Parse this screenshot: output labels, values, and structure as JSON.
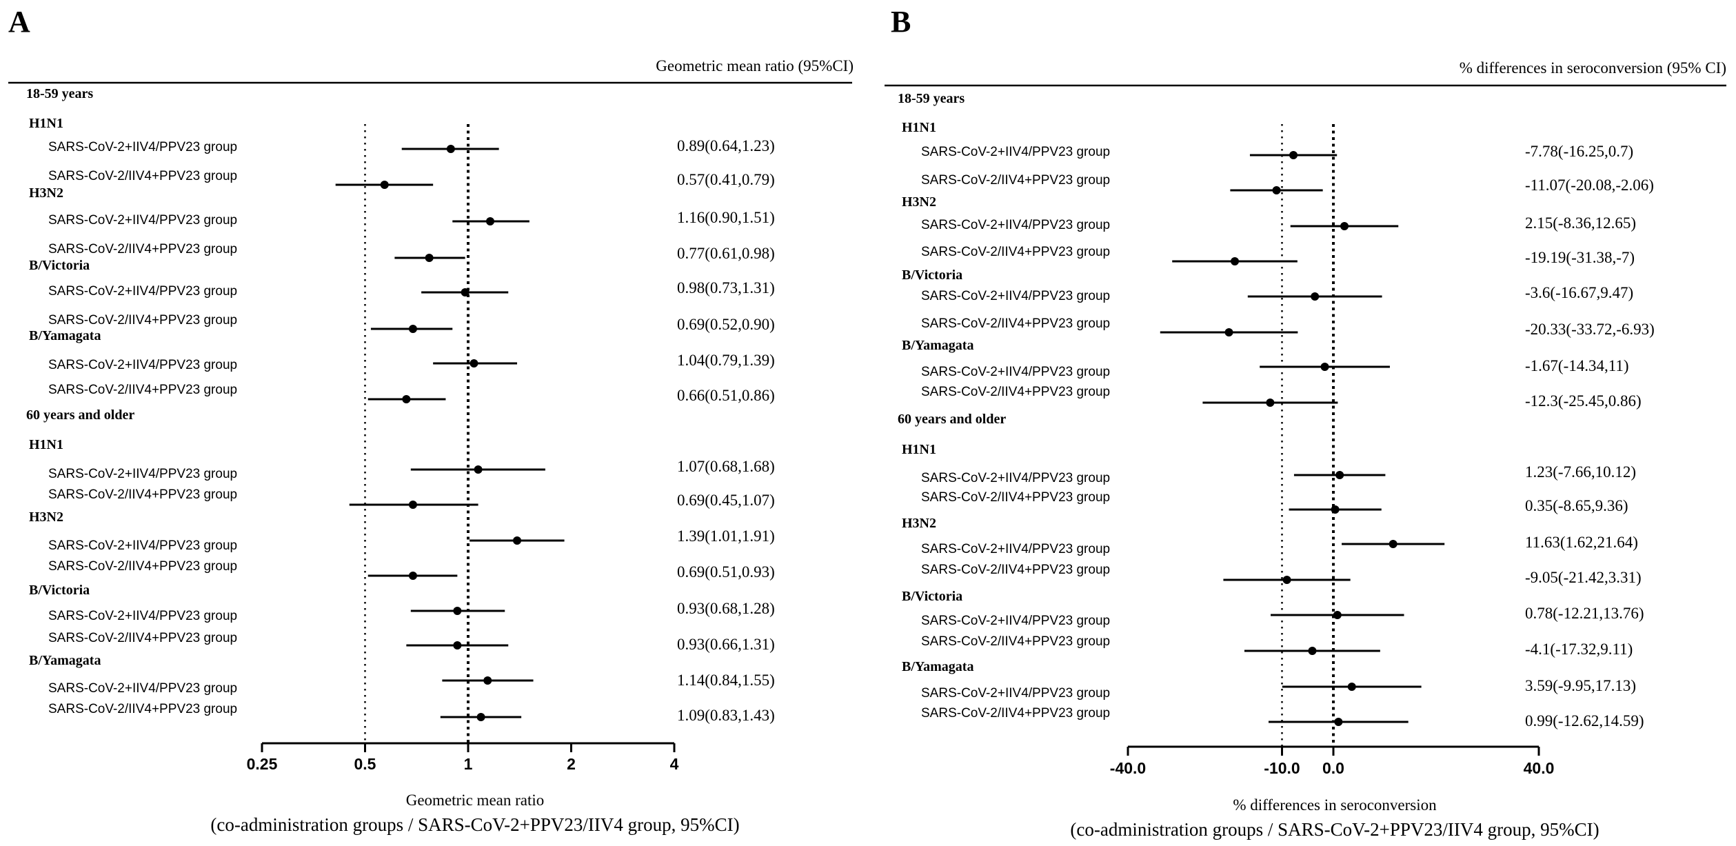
{
  "figure": {
    "colors": {
      "ink": "#000000",
      "background": "#ffffff"
    }
  },
  "chart_data": [
    {
      "type": "forest",
      "panel_label": "A",
      "header": "Geometric mean ratio (95%CI)",
      "xlabel": "Geometric mean ratio",
      "xlabel_sub": "(co-administration groups / SARS-CoV-2+PPV23/IIV4 group, 95%CI)",
      "x_scale": "log2",
      "xlim": [
        0.25,
        4
      ],
      "ticks": [
        0.25,
        0.5,
        1,
        2,
        4
      ],
      "tick_labels": [
        "0.25",
        "0.5",
        "1",
        "2",
        "4"
      ],
      "reference_lines": [
        {
          "value": 0.5,
          "style": "sparse-dotted"
        },
        {
          "value": 1,
          "style": "dotted"
        }
      ],
      "sections": [
        {
          "title": "18-59 years",
          "groups": [
            {
              "name": "H1N1",
              "rows": [
                {
                  "label": "SARS-CoV-2+IIV4/PPV23 group",
                  "est": 0.89,
                  "lo": 0.64,
                  "hi": 1.23,
                  "text": "0.89(0.64,1.23)"
                },
                {
                  "label": "SARS-CoV-2/IIV4+PPV23 group",
                  "est": 0.57,
                  "lo": 0.41,
                  "hi": 0.79,
                  "text": "0.57(0.41,0.79)"
                }
              ]
            },
            {
              "name": "H3N2",
              "rows": [
                {
                  "label": "SARS-CoV-2+IIV4/PPV23 group",
                  "est": 1.16,
                  "lo": 0.9,
                  "hi": 1.51,
                  "text": "1.16(0.90,1.51)"
                },
                {
                  "label": "SARS-CoV-2/IIV4+PPV23 group",
                  "est": 0.77,
                  "lo": 0.61,
                  "hi": 0.98,
                  "text": "0.77(0.61,0.98)"
                }
              ]
            },
            {
              "name": "B/Victoria",
              "rows": [
                {
                  "label": "SARS-CoV-2+IIV4/PPV23 group",
                  "est": 0.98,
                  "lo": 0.73,
                  "hi": 1.31,
                  "text": "0.98(0.73,1.31)"
                },
                {
                  "label": "SARS-CoV-2/IIV4+PPV23 group",
                  "est": 0.69,
                  "lo": 0.52,
                  "hi": 0.9,
                  "text": "0.69(0.52,0.90)"
                }
              ]
            },
            {
              "name": "B/Yamagata",
              "rows": [
                {
                  "label": "SARS-CoV-2+IIV4/PPV23 group",
                  "est": 1.04,
                  "lo": 0.79,
                  "hi": 1.39,
                  "text": "1.04(0.79,1.39)"
                },
                {
                  "label": "SARS-CoV-2/IIV4+PPV23 group",
                  "est": 0.66,
                  "lo": 0.51,
                  "hi": 0.86,
                  "text": "0.66(0.51,0.86)"
                }
              ]
            }
          ]
        },
        {
          "title": "60 years and older",
          "groups": [
            {
              "name": "H1N1",
              "rows": [
                {
                  "label": "SARS-CoV-2+IIV4/PPV23 group",
                  "est": 1.07,
                  "lo": 0.68,
                  "hi": 1.68,
                  "text": "1.07(0.68,1.68)"
                },
                {
                  "label": "SARS-CoV-2/IIV4+PPV23 group",
                  "est": 0.69,
                  "lo": 0.45,
                  "hi": 1.07,
                  "text": "0.69(0.45,1.07)"
                }
              ]
            },
            {
              "name": "H3N2",
              "rows": [
                {
                  "label": "SARS-CoV-2+IIV4/PPV23 group",
                  "est": 1.39,
                  "lo": 1.01,
                  "hi": 1.91,
                  "text": "1.39(1.01,1.91)"
                },
                {
                  "label": "SARS-CoV-2/IIV4+PPV23 group",
                  "est": 0.69,
                  "lo": 0.51,
                  "hi": 0.93,
                  "text": "0.69(0.51,0.93)"
                }
              ]
            },
            {
              "name": "B/Victoria",
              "rows": [
                {
                  "label": "SARS-CoV-2+IIV4/PPV23 group",
                  "est": 0.93,
                  "lo": 0.68,
                  "hi": 1.28,
                  "text": "0.93(0.68,1.28)"
                },
                {
                  "label": "SARS-CoV-2/IIV4+PPV23 group",
                  "est": 0.93,
                  "lo": 0.66,
                  "hi": 1.31,
                  "text": "0.93(0.66,1.31)"
                }
              ]
            },
            {
              "name": "B/Yamagata",
              "rows": [
                {
                  "label": "SARS-CoV-2+IIV4/PPV23 group",
                  "est": 1.14,
                  "lo": 0.84,
                  "hi": 1.55,
                  "text": "1.14(0.84,1.55)"
                },
                {
                  "label": "SARS-CoV-2/IIV4+PPV23 group",
                  "est": 1.09,
                  "lo": 0.83,
                  "hi": 1.43,
                  "text": "1.09(0.83,1.43)"
                }
              ]
            }
          ]
        }
      ]
    },
    {
      "type": "forest",
      "panel_label": "B",
      "header": "% differences in seroconversion (95% CI)",
      "xlabel": "% differences in seroconversion",
      "xlabel_sub": "(co-administration groups / SARS-CoV-2+PPV23/IIV4 group, 95%CI)",
      "x_scale": "linear",
      "xlim": [
        -40,
        40
      ],
      "ticks": [
        -40,
        -10,
        0,
        40
      ],
      "tick_labels": [
        "-40.0",
        "-10.0",
        "0.0",
        "40.0"
      ],
      "reference_lines": [
        {
          "value": -10,
          "style": "sparse-dotted"
        },
        {
          "value": 0,
          "style": "dotted"
        }
      ],
      "sections": [
        {
          "title": "18-59 years",
          "groups": [
            {
              "name": "H1N1",
              "rows": [
                {
                  "label": "SARS-CoV-2+IIV4/PPV23 group",
                  "est": -7.78,
                  "lo": -16.25,
                  "hi": 0.7,
                  "text": "-7.78(-16.25,0.7)"
                },
                {
                  "label": "SARS-CoV-2/IIV4+PPV23 group",
                  "est": -11.07,
                  "lo": -20.08,
                  "hi": -2.06,
                  "text": "-11.07(-20.08,-2.06)"
                }
              ]
            },
            {
              "name": "H3N2",
              "rows": [
                {
                  "label": "SARS-CoV-2+IIV4/PPV23 group",
                  "est": 2.15,
                  "lo": -8.36,
                  "hi": 12.65,
                  "text": "2.15(-8.36,12.65)"
                },
                {
                  "label": "SARS-CoV-2/IIV4+PPV23 group",
                  "est": -19.19,
                  "lo": -31.38,
                  "hi": -7,
                  "text": "-19.19(-31.38,-7)"
                }
              ]
            },
            {
              "name": "B/Victoria",
              "rows": [
                {
                  "label": "SARS-CoV-2+IIV4/PPV23 group",
                  "est": -3.6,
                  "lo": -16.67,
                  "hi": 9.47,
                  "text": "-3.6(-16.67,9.47)"
                },
                {
                  "label": "SARS-CoV-2/IIV4+PPV23 group",
                  "est": -20.33,
                  "lo": -33.72,
                  "hi": -6.93,
                  "text": "-20.33(-33.72,-6.93)"
                }
              ]
            },
            {
              "name": "B/Yamagata",
              "rows": [
                {
                  "label": "SARS-CoV-2+IIV4/PPV23 group",
                  "est": -1.67,
                  "lo": -14.34,
                  "hi": 11,
                  "text": "-1.67(-14.34,11)"
                },
                {
                  "label": "SARS-CoV-2/IIV4+PPV23 group",
                  "est": -12.3,
                  "lo": -25.45,
                  "hi": 0.86,
                  "text": "-12.3(-25.45,0.86)"
                }
              ]
            }
          ]
        },
        {
          "title": "60 years and older",
          "groups": [
            {
              "name": "H1N1",
              "rows": [
                {
                  "label": "SARS-CoV-2+IIV4/PPV23 group",
                  "est": 1.23,
                  "lo": -7.66,
                  "hi": 10.12,
                  "text": "1.23(-7.66,10.12)"
                },
                {
                  "label": "SARS-CoV-2/IIV4+PPV23 group",
                  "est": 0.35,
                  "lo": -8.65,
                  "hi": 9.36,
                  "text": "0.35(-8.65,9.36)"
                }
              ]
            },
            {
              "name": "H3N2",
              "rows": [
                {
                  "label": "SARS-CoV-2+IIV4/PPV23 group",
                  "est": 11.63,
                  "lo": 1.62,
                  "hi": 21.64,
                  "text": "11.63(1.62,21.64)"
                },
                {
                  "label": "SARS-CoV-2/IIV4+PPV23 group",
                  "est": -9.05,
                  "lo": -21.42,
                  "hi": 3.31,
                  "text": "-9.05(-21.42,3.31)"
                }
              ]
            },
            {
              "name": "B/Victoria",
              "rows": [
                {
                  "label": "SARS-CoV-2+IIV4/PPV23 group",
                  "est": 0.78,
                  "lo": -12.21,
                  "hi": 13.76,
                  "text": "0.78(-12.21,13.76)"
                },
                {
                  "label": "SARS-CoV-2/IIV4+PPV23 group",
                  "est": -4.1,
                  "lo": -17.32,
                  "hi": 9.11,
                  "text": "-4.1(-17.32,9.11)"
                }
              ]
            },
            {
              "name": "B/Yamagata",
              "rows": [
                {
                  "label": "SARS-CoV-2+IIV4/PPV23 group",
                  "est": 3.59,
                  "lo": -9.95,
                  "hi": 17.13,
                  "text": "3.59(-9.95,17.13)"
                },
                {
                  "label": "SARS-CoV-2/IIV4+PPV23 group",
                  "est": 0.99,
                  "lo": -12.62,
                  "hi": 14.59,
                  "text": "0.99(-12.62,14.59)"
                }
              ]
            }
          ]
        }
      ]
    }
  ]
}
